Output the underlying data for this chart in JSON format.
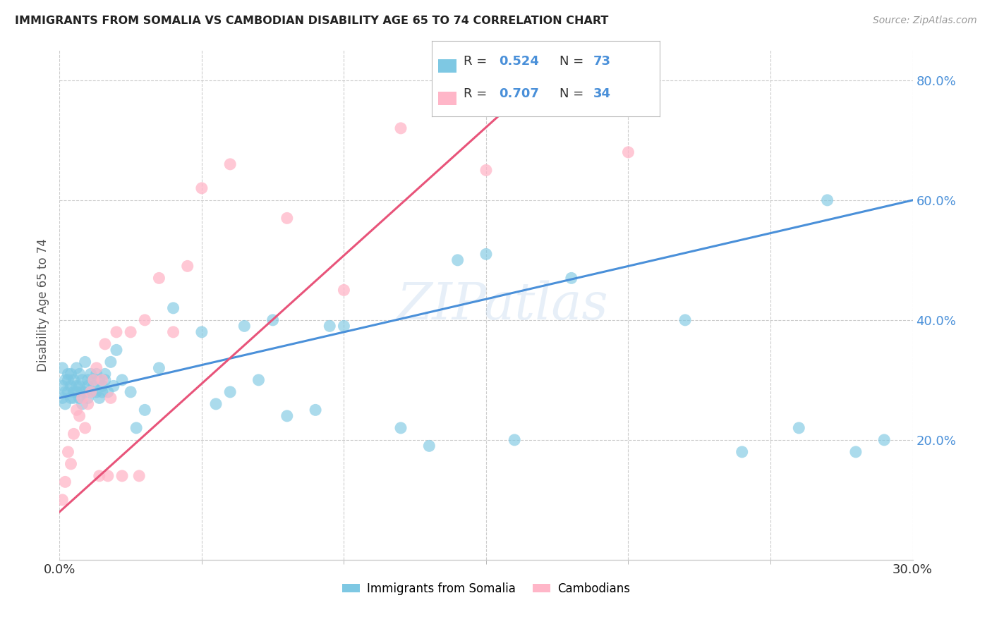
{
  "title": "IMMIGRANTS FROM SOMALIA VS CAMBODIAN DISABILITY AGE 65 TO 74 CORRELATION CHART",
  "source": "Source: ZipAtlas.com",
  "ylabel": "Disability Age 65 to 74",
  "xlim": [
    0.0,
    0.3
  ],
  "ylim": [
    0.0,
    0.85
  ],
  "yticks": [
    0.2,
    0.4,
    0.6,
    0.8
  ],
  "ytick_labels": [
    "20.0%",
    "40.0%",
    "60.0%",
    "80.0%"
  ],
  "xticks_minor": [
    0.05,
    0.1,
    0.15,
    0.2,
    0.25
  ],
  "somalia_R": 0.524,
  "somalia_N": 73,
  "cambodia_R": 0.707,
  "cambodia_N": 34,
  "somalia_color": "#7ec8e3",
  "cambodia_color": "#ffb6c8",
  "somalia_line_color": "#4a90d9",
  "cambodia_line_color": "#e8547a",
  "watermark": "ZIPatlas",
  "legend_label1": "Immigrants from Somalia",
  "legend_label2": "Cambodians",
  "somalia_line_x0": 0.0,
  "somalia_line_y0": 0.27,
  "somalia_line_x1": 0.3,
  "somalia_line_y1": 0.6,
  "cambodia_line_x0": 0.0,
  "cambodia_line_y0": 0.08,
  "cambodia_line_x1": 0.18,
  "cambodia_line_y1": 0.85,
  "somalia_x": [
    0.001,
    0.001,
    0.001,
    0.002,
    0.002,
    0.002,
    0.003,
    0.003,
    0.003,
    0.004,
    0.004,
    0.004,
    0.005,
    0.005,
    0.005,
    0.006,
    0.006,
    0.006,
    0.007,
    0.007,
    0.007,
    0.008,
    0.008,
    0.008,
    0.009,
    0.009,
    0.01,
    0.01,
    0.01,
    0.011,
    0.011,
    0.012,
    0.012,
    0.013,
    0.013,
    0.014,
    0.014,
    0.015,
    0.015,
    0.016,
    0.016,
    0.017,
    0.018,
    0.019,
    0.02,
    0.022,
    0.025,
    0.027,
    0.03,
    0.035,
    0.04,
    0.05,
    0.055,
    0.06,
    0.065,
    0.07,
    0.075,
    0.08,
    0.09,
    0.095,
    0.1,
    0.12,
    0.13,
    0.14,
    0.15,
    0.16,
    0.18,
    0.22,
    0.24,
    0.26,
    0.27,
    0.28,
    0.29
  ],
  "somalia_y": [
    0.29,
    0.32,
    0.27,
    0.3,
    0.28,
    0.26,
    0.31,
    0.28,
    0.3,
    0.29,
    0.27,
    0.31,
    0.3,
    0.28,
    0.27,
    0.29,
    0.32,
    0.28,
    0.31,
    0.29,
    0.27,
    0.3,
    0.28,
    0.26,
    0.33,
    0.28,
    0.3,
    0.29,
    0.27,
    0.31,
    0.28,
    0.3,
    0.29,
    0.28,
    0.31,
    0.3,
    0.27,
    0.29,
    0.28,
    0.31,
    0.3,
    0.28,
    0.33,
    0.29,
    0.35,
    0.3,
    0.28,
    0.22,
    0.25,
    0.32,
    0.42,
    0.38,
    0.26,
    0.28,
    0.39,
    0.3,
    0.4,
    0.24,
    0.25,
    0.39,
    0.39,
    0.22,
    0.19,
    0.5,
    0.51,
    0.2,
    0.47,
    0.4,
    0.18,
    0.22,
    0.6,
    0.18,
    0.2
  ],
  "cambodia_x": [
    0.001,
    0.002,
    0.003,
    0.004,
    0.005,
    0.006,
    0.007,
    0.008,
    0.009,
    0.01,
    0.011,
    0.012,
    0.013,
    0.014,
    0.015,
    0.016,
    0.017,
    0.018,
    0.02,
    0.022,
    0.025,
    0.028,
    0.03,
    0.035,
    0.04,
    0.045,
    0.05,
    0.06,
    0.08,
    0.1,
    0.12,
    0.15,
    0.18,
    0.2
  ],
  "cambodia_y": [
    0.1,
    0.13,
    0.18,
    0.16,
    0.21,
    0.25,
    0.24,
    0.27,
    0.22,
    0.26,
    0.28,
    0.3,
    0.32,
    0.14,
    0.3,
    0.36,
    0.14,
    0.27,
    0.38,
    0.14,
    0.38,
    0.14,
    0.4,
    0.47,
    0.38,
    0.49,
    0.62,
    0.66,
    0.57,
    0.45,
    0.72,
    0.65,
    0.75,
    0.68
  ]
}
